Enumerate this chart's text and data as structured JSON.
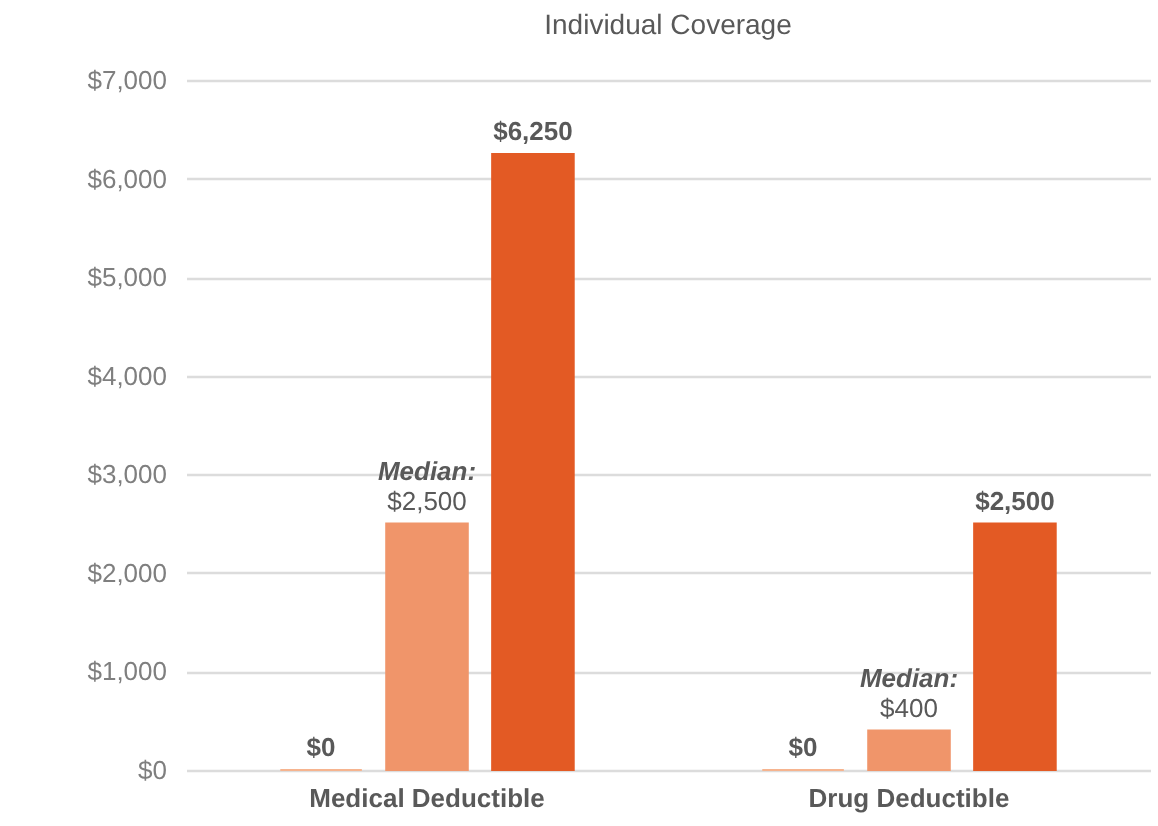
{
  "chart_data": {
    "type": "bar",
    "title": "Individual Coverage",
    "categories": [
      "Medical Deductible",
      "Drug Deductible"
    ],
    "series": [
      {
        "color": "#f6b48f",
        "values": [
          0,
          0
        ],
        "value_labels": [
          "$0",
          "$0"
        ]
      },
      {
        "color": "#f0956a",
        "values": [
          2500,
          400
        ],
        "value_labels": [
          "Median:\n$2,500",
          "Median:\n$400"
        ]
      },
      {
        "color": "#e35a24",
        "values": [
          6250,
          2500
        ],
        "value_labels": [
          "$6,250",
          "$2,500"
        ]
      }
    ],
    "ylim": [
      0,
      7000
    ],
    "yticks": [
      {
        "value": 0,
        "label": "$0"
      },
      {
        "value": 1000,
        "label": "$1,000"
      },
      {
        "value": 2000,
        "label": "$2,000"
      },
      {
        "value": 3000,
        "label": "$3,000"
      },
      {
        "value": 4000,
        "label": "$4,000"
      },
      {
        "value": 5000,
        "label": "$5,000"
      },
      {
        "value": 6000,
        "label": "$6,000"
      },
      {
        "value": 7000,
        "label": "$7,000"
      }
    ],
    "grid": "y",
    "legend": false
  }
}
